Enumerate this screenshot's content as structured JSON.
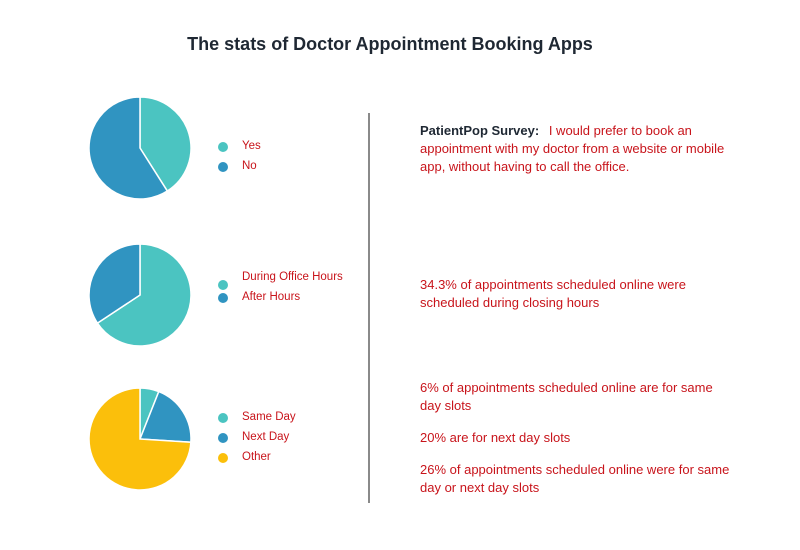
{
  "title": "The stats of Doctor Appointment Booking Apps",
  "colors": {
    "teal": "#4bc4c1",
    "blue": "#3094c1",
    "yellow": "#fbbf0b",
    "text_red": "#c8141b",
    "divider": "#8a8a8a"
  },
  "chart_data": [
    {
      "type": "pie",
      "categories": [
        "Yes",
        "No"
      ],
      "values": [
        41,
        59
      ],
      "colors": [
        "#4bc4c1",
        "#3094c1"
      ]
    },
    {
      "type": "pie",
      "categories": [
        "During Office Hours",
        "After Hours"
      ],
      "values": [
        65.7,
        34.3
      ],
      "colors": [
        "#4bc4c1",
        "#3094c1"
      ]
    },
    {
      "type": "pie",
      "categories": [
        "Same Day",
        "Next Day",
        "Other"
      ],
      "values": [
        6,
        20,
        74
      ],
      "colors": [
        "#4bc4c1",
        "#3094c1",
        "#fbbf0b"
      ]
    }
  ],
  "right": {
    "survey_label": "PatientPop Survey:",
    "survey_text": "I would prefer to book an appointment with my doctor from a website or mobile app, without having to call the office.",
    "stat2": "34.3% of appointments scheduled online were scheduled during closing hours",
    "stat3a": "6% of appointments scheduled online are for same day slots",
    "stat3b": "20% are for next day slots",
    "stat3c": "26% of appointments scheduled online were for same day or next day slots"
  }
}
